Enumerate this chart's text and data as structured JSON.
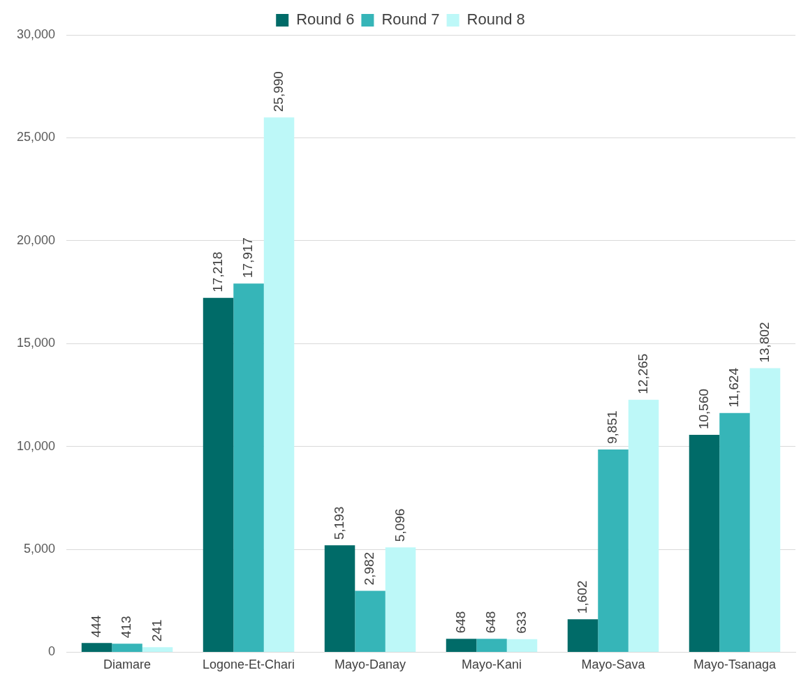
{
  "chart_data": {
    "type": "bar",
    "categories": [
      "Diamare",
      "Logone-Et-Chari",
      "Mayo-Danay",
      "Mayo-Kani",
      "Mayo-Sava",
      "Mayo-Tsanaga"
    ],
    "series": [
      {
        "name": "Round 6",
        "color": "#006b68",
        "values": [
          444,
          17218,
          5193,
          648,
          1602,
          10560
        ],
        "value_labels": [
          "444",
          "17,218",
          "5,193",
          "648",
          "1,602",
          "10,560"
        ]
      },
      {
        "name": "Round 7",
        "color": "#36b5b8",
        "values": [
          413,
          17917,
          2982,
          648,
          9851,
          11624
        ],
        "value_labels": [
          "413",
          "17,917",
          "2,982",
          "648",
          "9,851",
          "11,624"
        ]
      },
      {
        "name": "Round 8",
        "color": "#bdf8f8",
        "values": [
          241,
          25990,
          5096,
          633,
          12265,
          13802
        ],
        "value_labels": [
          "241",
          "25,990",
          "5,096",
          "633",
          "12,265",
          "13,802"
        ]
      }
    ],
    "ylim": [
      0,
      30000
    ],
    "yticks": [
      0,
      {
        "value": 5000,
        "label": "5,000"
      },
      {
        "value": 10000,
        "label": "10,000"
      },
      {
        "value": 15000,
        "label": "15,000"
      },
      {
        "value": 20000,
        "label": "20,000"
      },
      {
        "value": 25000,
        "label": "25,000"
      },
      {
        "value": 30000,
        "label": "30,000"
      }
    ],
    "grid": "y",
    "legend": "top"
  }
}
